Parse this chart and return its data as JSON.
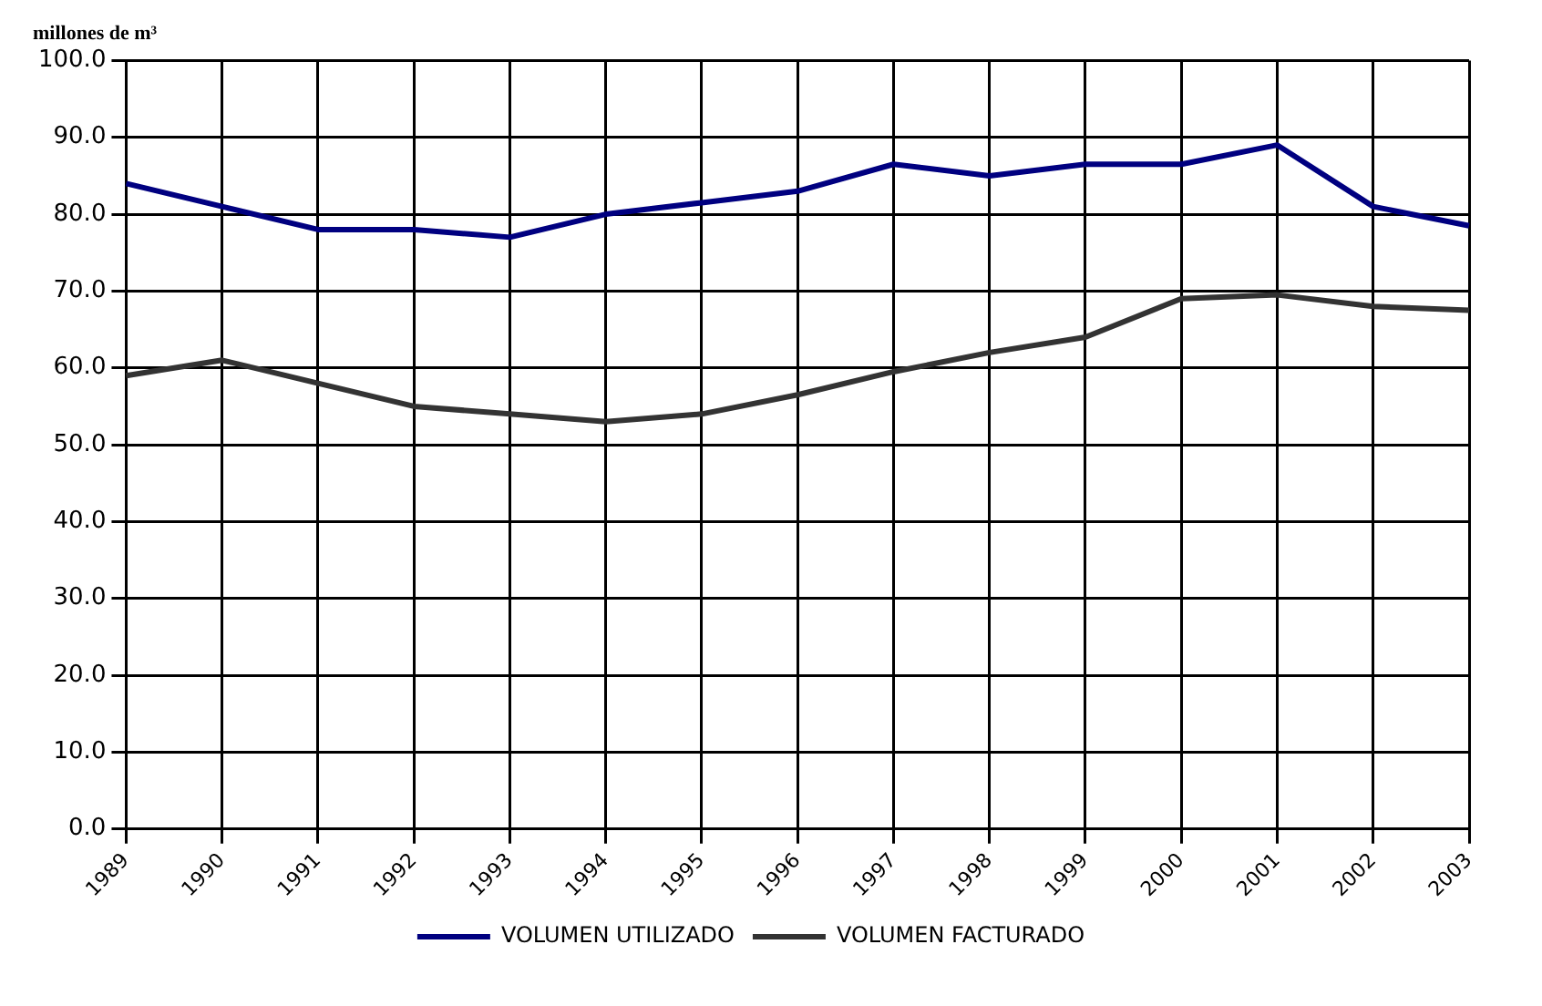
{
  "chart_data": {
    "type": "line",
    "title": "millones de m³",
    "categories": [
      "1989",
      "1990",
      "1991",
      "1992",
      "1993",
      "1994",
      "1995",
      "1996",
      "1997",
      "1998",
      "1999",
      "2000",
      "2001",
      "2002",
      "2003"
    ],
    "series": [
      {
        "name": "VOLUMEN UTILIZADO",
        "color": "#000080",
        "values": [
          84,
          81,
          78,
          78,
          77,
          80,
          81.5,
          83,
          86.5,
          85,
          86.5,
          86.5,
          89,
          81,
          78.5
        ]
      },
      {
        "name": "VOLUMEN FACTURADO",
        "color": "#333333",
        "values": [
          59,
          61,
          58,
          55,
          54,
          53,
          54,
          56.5,
          59.5,
          62,
          64,
          69,
          69.5,
          68,
          67.5
        ]
      }
    ],
    "ylim": [
      0,
      100
    ],
    "yticks": [
      {
        "value": 0,
        "label": "0.0"
      },
      {
        "value": 10,
        "label": "10.0"
      },
      {
        "value": 20,
        "label": "20.0"
      },
      {
        "value": 30,
        "label": "30.0"
      },
      {
        "value": 40,
        "label": "40.0"
      },
      {
        "value": 50,
        "label": "50.0"
      },
      {
        "value": 60,
        "label": "60.0"
      },
      {
        "value": 70,
        "label": "70.0"
      },
      {
        "value": 80,
        "label": "80.0"
      },
      {
        "value": 90,
        "label": "90.0"
      },
      {
        "value": 100,
        "label": "100.0"
      }
    ],
    "grid": true,
    "legend": "bottom",
    "marker": "none",
    "line_style": "solid"
  }
}
